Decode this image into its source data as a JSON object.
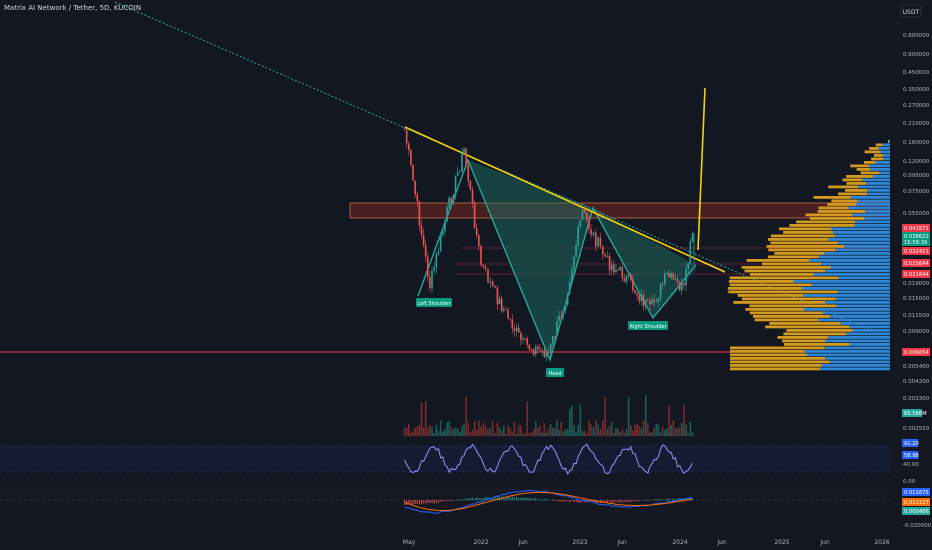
{
  "header": {
    "title": "Matrix AI Network / Tether, 5D, KUCOIN"
  },
  "price_axis": {
    "currency": "USDT",
    "ticks": [
      "0.800000",
      "0.600000",
      "0.450000",
      "0.350000",
      "0.270000",
      "0.210000",
      "0.160000",
      "0.120000",
      "0.095000",
      "0.075000",
      "0.055000",
      "0.019000",
      "0.015000",
      "0.011500",
      "0.009000",
      "0.005400",
      "0.004200",
      "0.003300",
      "0.002550"
    ],
    "markers": [
      {
        "label": "0.041871",
        "color": "#f23645"
      },
      {
        "label": "0.038622",
        "color": "#089981"
      },
      {
        "label": "15:58:39",
        "color": "#089981"
      },
      {
        "label": "0.032421",
        "color": "#f23645"
      },
      {
        "label": "0.025644",
        "color": "#f23645"
      },
      {
        "label": "0.021644",
        "color": "#f23645"
      },
      {
        "label": "0.006654",
        "color": "#f23645"
      }
    ]
  },
  "volume_pane": {
    "value_label": "65.586M"
  },
  "rsi_pane": {
    "ticks": [
      "40.00",
      "0.00"
    ],
    "markers": [
      {
        "label": "91.20",
        "color": "#2962ff"
      },
      {
        "label": "58.98",
        "color": "#2962ff"
      }
    ]
  },
  "macd_pane": {
    "ticks": [
      "-0.020000"
    ],
    "markers": [
      {
        "label": "0.011675",
        "color": "#2962ff"
      },
      {
        "label": "0.011127",
        "color": "#ff6d00"
      },
      {
        "label": "0.000486",
        "color": "#26a69a"
      }
    ]
  },
  "time_axis": {
    "labels": [
      "May",
      "2022",
      "Jun",
      "2023",
      "Jun",
      "2024",
      "Jun",
      "2025",
      "Jun",
      "2026"
    ]
  },
  "annotations": [
    {
      "label": "Left Shoulder"
    },
    {
      "label": "Head"
    },
    {
      "label": "Right Shoulder"
    }
  ],
  "colors": {
    "background": "#131722",
    "up": "#26a69a",
    "down": "#ef5350",
    "trendline": "#f5d20a",
    "volume_profile_up": "#d49a1e",
    "volume_profile_down": "#2e86d6",
    "pattern_fill": "#1d6b5f",
    "supply_zone": "#c0392b"
  },
  "chart_data": {
    "type": "line",
    "title": "Matrix AI Network / Tether, 5D, KUCOIN",
    "xlabel": "",
    "ylabel": "",
    "log_scale": true,
    "series": [
      {
        "x": [
          "2021-04",
          "2021-06",
          "2021-07",
          "2021-09",
          "2021-11",
          "2022-01",
          "2022-03",
          "2022-06",
          "2022-09",
          "2022-11",
          "2023-01",
          "2023-02",
          "2023-04",
          "2023-06",
          "2023-09",
          "2023-11",
          "2024-01",
          "2024-02"
        ],
        "values": [
          0.19,
          0.04,
          0.018,
          0.055,
          0.14,
          0.025,
          0.015,
          0.0075,
          0.0065,
          0.015,
          0.055,
          0.041,
          0.026,
          0.021,
          0.0125,
          0.021,
          0.017,
          0.04
        ]
      }
    ]
  }
}
